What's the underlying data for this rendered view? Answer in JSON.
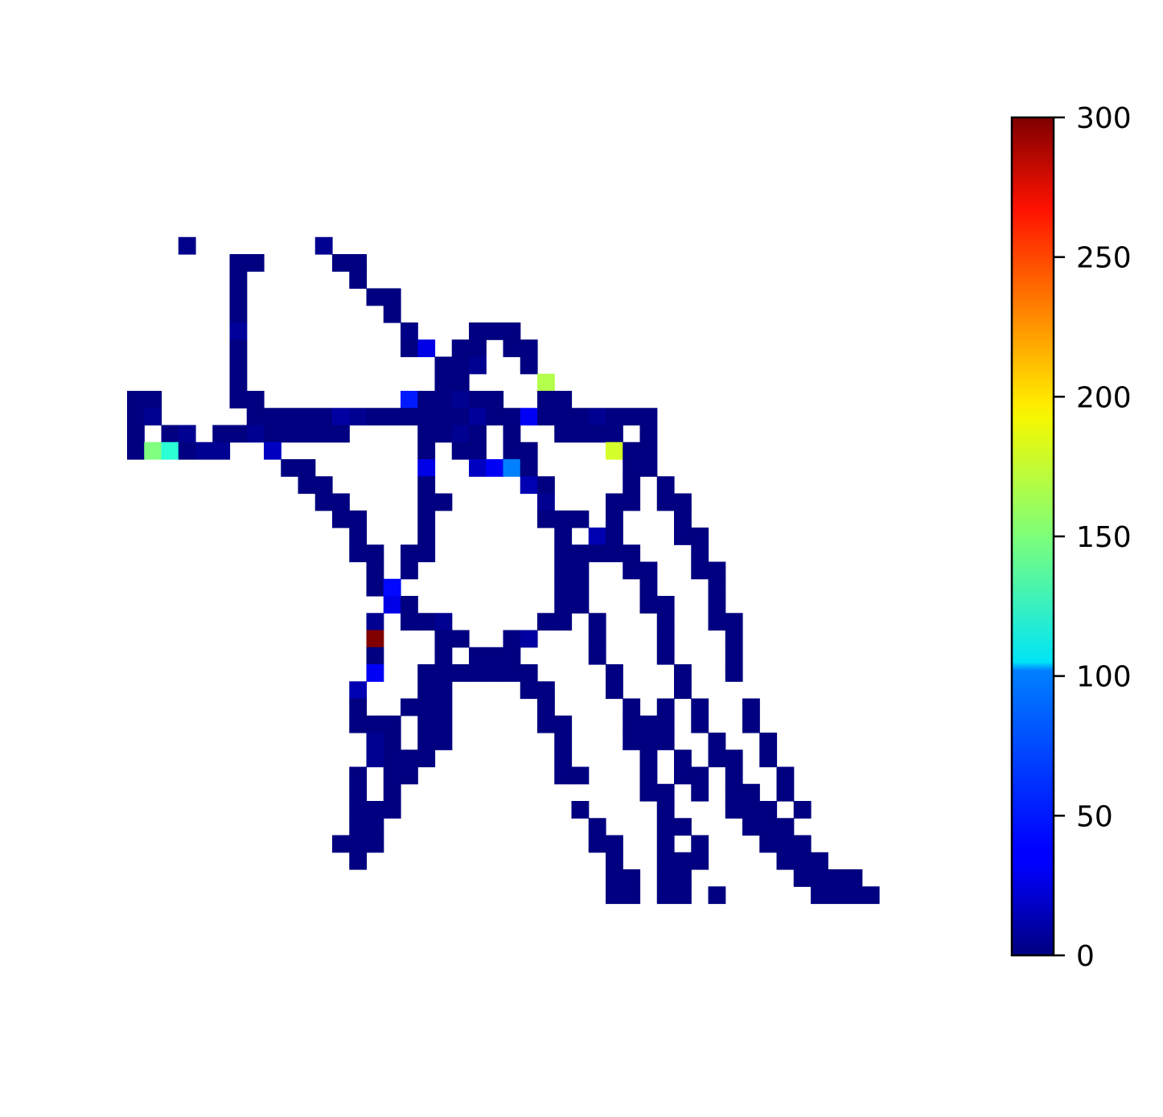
{
  "chart_data": {
    "type": "heatmap",
    "title": "",
    "xlabel": "",
    "ylabel": "",
    "grid": false,
    "colormap": "jet",
    "colorbar": {
      "range": [
        0,
        300
      ],
      "ticks": [
        0,
        50,
        100,
        150,
        200,
        250,
        300
      ],
      "tick_labels": [
        "0",
        "50",
        "100",
        "150",
        "200",
        "250",
        "300"
      ]
    },
    "grid_size": {
      "rows": 49,
      "cols": 49
    },
    "cells": [
      [
        7,
        3,
        3
      ],
      [
        7,
        11,
        5
      ],
      [
        8,
        6,
        0
      ],
      [
        8,
        7,
        0
      ],
      [
        8,
        12,
        0
      ],
      [
        8,
        13,
        0
      ],
      [
        9,
        6,
        0
      ],
      [
        9,
        13,
        0
      ],
      [
        10,
        6,
        0
      ],
      [
        10,
        14,
        0
      ],
      [
        10,
        15,
        0
      ],
      [
        11,
        6,
        0
      ],
      [
        11,
        15,
        0
      ],
      [
        12,
        6,
        8
      ],
      [
        12,
        16,
        2
      ],
      [
        12,
        20,
        0
      ],
      [
        12,
        21,
        0
      ],
      [
        12,
        22,
        0
      ],
      [
        13,
        6,
        0
      ],
      [
        13,
        16,
        0
      ],
      [
        13,
        17,
        30
      ],
      [
        13,
        19,
        0
      ],
      [
        13,
        20,
        0
      ],
      [
        13,
        22,
        0
      ],
      [
        13,
        23,
        0
      ],
      [
        14,
        6,
        0
      ],
      [
        14,
        18,
        0
      ],
      [
        14,
        19,
        0
      ],
      [
        14,
        20,
        5
      ],
      [
        14,
        23,
        0
      ],
      [
        15,
        6,
        0
      ],
      [
        15,
        18,
        0
      ],
      [
        15,
        19,
        0
      ],
      [
        15,
        24,
        165
      ],
      [
        16,
        0,
        0
      ],
      [
        16,
        1,
        0
      ],
      [
        16,
        6,
        0
      ],
      [
        16,
        7,
        0
      ],
      [
        16,
        16,
        45
      ],
      [
        16,
        17,
        0
      ],
      [
        16,
        18,
        0
      ],
      [
        16,
        19,
        5
      ],
      [
        16,
        20,
        0
      ],
      [
        16,
        21,
        0
      ],
      [
        16,
        24,
        0
      ],
      [
        16,
        25,
        0
      ],
      [
        17,
        0,
        0
      ],
      [
        17,
        1,
        5
      ],
      [
        17,
        7,
        0
      ],
      [
        17,
        8,
        0
      ],
      [
        17,
        9,
        0
      ],
      [
        17,
        10,
        0
      ],
      [
        17,
        11,
        0
      ],
      [
        17,
        12,
        10
      ],
      [
        17,
        13,
        5
      ],
      [
        17,
        14,
        0
      ],
      [
        17,
        15,
        0
      ],
      [
        17,
        16,
        0
      ],
      [
        17,
        17,
        0
      ],
      [
        17,
        18,
        0
      ],
      [
        17,
        19,
        0
      ],
      [
        17,
        20,
        8
      ],
      [
        17,
        21,
        0
      ],
      [
        17,
        22,
        0
      ],
      [
        17,
        23,
        35
      ],
      [
        17,
        24,
        0
      ],
      [
        17,
        25,
        0
      ],
      [
        17,
        26,
        0
      ],
      [
        17,
        27,
        5
      ],
      [
        17,
        28,
        0
      ],
      [
        17,
        29,
        0
      ],
      [
        17,
        30,
        0
      ],
      [
        18,
        0,
        0
      ],
      [
        18,
        2,
        0
      ],
      [
        18,
        3,
        5
      ],
      [
        18,
        5,
        0
      ],
      [
        18,
        6,
        0
      ],
      [
        18,
        7,
        5
      ],
      [
        18,
        8,
        0
      ],
      [
        18,
        9,
        0
      ],
      [
        18,
        10,
        0
      ],
      [
        18,
        11,
        0
      ],
      [
        18,
        12,
        0
      ],
      [
        18,
        17,
        0
      ],
      [
        18,
        18,
        0
      ],
      [
        18,
        19,
        5
      ],
      [
        18,
        20,
        0
      ],
      [
        18,
        22,
        0
      ],
      [
        18,
        25,
        0
      ],
      [
        18,
        26,
        0
      ],
      [
        18,
        27,
        0
      ],
      [
        18,
        28,
        0
      ],
      [
        18,
        30,
        0
      ],
      [
        19,
        0,
        0
      ],
      [
        19,
        1,
        150
      ],
      [
        19,
        2,
        125
      ],
      [
        19,
        3,
        0
      ],
      [
        19,
        4,
        5
      ],
      [
        19,
        5,
        5
      ],
      [
        19,
        8,
        20
      ],
      [
        19,
        17,
        0
      ],
      [
        19,
        19,
        0
      ],
      [
        19,
        20,
        0
      ],
      [
        19,
        22,
        0
      ],
      [
        19,
        23,
        0
      ],
      [
        19,
        28,
        175
      ],
      [
        19,
        29,
        0
      ],
      [
        19,
        30,
        0
      ],
      [
        20,
        9,
        0
      ],
      [
        20,
        10,
        0
      ],
      [
        20,
        17,
        30
      ],
      [
        20,
        20,
        20
      ],
      [
        20,
        21,
        35
      ],
      [
        20,
        22,
        75
      ],
      [
        20,
        23,
        0
      ],
      [
        20,
        29,
        0
      ],
      [
        20,
        30,
        0
      ],
      [
        21,
        10,
        0
      ],
      [
        21,
        11,
        0
      ],
      [
        21,
        17,
        0
      ],
      [
        21,
        23,
        15
      ],
      [
        21,
        24,
        0
      ],
      [
        21,
        29,
        0
      ],
      [
        21,
        31,
        0
      ],
      [
        22,
        11,
        0
      ],
      [
        22,
        12,
        0
      ],
      [
        22,
        17,
        0
      ],
      [
        22,
        18,
        0
      ],
      [
        22,
        24,
        5
      ],
      [
        22,
        28,
        0
      ],
      [
        22,
        29,
        0
      ],
      [
        22,
        31,
        0
      ],
      [
        22,
        32,
        0
      ],
      [
        23,
        12,
        0
      ],
      [
        23,
        13,
        0
      ],
      [
        23,
        17,
        0
      ],
      [
        23,
        24,
        0
      ],
      [
        23,
        25,
        0
      ],
      [
        23,
        26,
        0
      ],
      [
        23,
        28,
        0
      ],
      [
        23,
        32,
        0
      ],
      [
        24,
        13,
        0
      ],
      [
        24,
        17,
        0
      ],
      [
        24,
        25,
        0
      ],
      [
        24,
        27,
        15
      ],
      [
        24,
        28,
        0
      ],
      [
        24,
        32,
        0
      ],
      [
        24,
        33,
        0
      ],
      [
        25,
        13,
        0
      ],
      [
        25,
        14,
        0
      ],
      [
        25,
        16,
        0
      ],
      [
        25,
        17,
        0
      ],
      [
        25,
        25,
        0
      ],
      [
        25,
        26,
        0
      ],
      [
        25,
        27,
        0
      ],
      [
        25,
        28,
        0
      ],
      [
        25,
        29,
        0
      ],
      [
        25,
        33,
        0
      ],
      [
        26,
        14,
        0
      ],
      [
        26,
        16,
        0
      ],
      [
        26,
        25,
        0
      ],
      [
        26,
        26,
        0
      ],
      [
        26,
        29,
        0
      ],
      [
        26,
        30,
        0
      ],
      [
        26,
        33,
        0
      ],
      [
        26,
        34,
        0
      ],
      [
        27,
        14,
        0
      ],
      [
        27,
        15,
        40
      ],
      [
        27,
        25,
        0
      ],
      [
        27,
        26,
        0
      ],
      [
        27,
        30,
        0
      ],
      [
        27,
        34,
        0
      ],
      [
        28,
        15,
        30
      ],
      [
        28,
        16,
        0
      ],
      [
        28,
        25,
        0
      ],
      [
        28,
        26,
        0
      ],
      [
        28,
        30,
        0
      ],
      [
        28,
        31,
        0
      ],
      [
        28,
        34,
        0
      ],
      [
        29,
        14,
        5
      ],
      [
        29,
        16,
        0
      ],
      [
        29,
        17,
        0
      ],
      [
        29,
        18,
        5
      ],
      [
        29,
        24,
        0
      ],
      [
        29,
        25,
        0
      ],
      [
        29,
        27,
        0
      ],
      [
        29,
        31,
        0
      ],
      [
        29,
        34,
        0
      ],
      [
        29,
        35,
        0
      ],
      [
        30,
        14,
        300
      ],
      [
        30,
        18,
        0
      ],
      [
        30,
        19,
        0
      ],
      [
        30,
        22,
        0
      ],
      [
        30,
        23,
        10
      ],
      [
        30,
        27,
        0
      ],
      [
        30,
        31,
        0
      ],
      [
        30,
        35,
        0
      ],
      [
        31,
        14,
        0
      ],
      [
        31,
        18,
        0
      ],
      [
        31,
        20,
        0
      ],
      [
        31,
        21,
        0
      ],
      [
        31,
        22,
        0
      ],
      [
        31,
        27,
        0
      ],
      [
        31,
        31,
        0
      ],
      [
        31,
        35,
        0
      ],
      [
        32,
        14,
        35
      ],
      [
        32,
        17,
        0
      ],
      [
        32,
        18,
        0
      ],
      [
        32,
        19,
        0
      ],
      [
        32,
        20,
        0
      ],
      [
        32,
        21,
        0
      ],
      [
        32,
        22,
        0
      ],
      [
        32,
        23,
        0
      ],
      [
        32,
        28,
        0
      ],
      [
        32,
        32,
        0
      ],
      [
        32,
        35,
        0
      ],
      [
        33,
        13,
        15
      ],
      [
        33,
        17,
        0
      ],
      [
        33,
        18,
        0
      ],
      [
        33,
        23,
        0
      ],
      [
        33,
        24,
        0
      ],
      [
        33,
        28,
        0
      ],
      [
        33,
        32,
        0
      ],
      [
        34,
        13,
        0
      ],
      [
        34,
        16,
        0
      ],
      [
        34,
        17,
        0
      ],
      [
        34,
        18,
        0
      ],
      [
        34,
        24,
        0
      ],
      [
        34,
        29,
        0
      ],
      [
        34,
        31,
        0
      ],
      [
        34,
        33,
        0
      ],
      [
        34,
        36,
        0
      ],
      [
        35,
        13,
        0
      ],
      [
        35,
        14,
        0
      ],
      [
        35,
        15,
        0
      ],
      [
        35,
        17,
        0
      ],
      [
        35,
        18,
        0
      ],
      [
        35,
        24,
        0
      ],
      [
        35,
        25,
        0
      ],
      [
        35,
        29,
        0
      ],
      [
        35,
        30,
        0
      ],
      [
        35,
        31,
        0
      ],
      [
        35,
        33,
        0
      ],
      [
        35,
        36,
        0
      ],
      [
        36,
        14,
        5
      ],
      [
        36,
        15,
        0
      ],
      [
        36,
        17,
        0
      ],
      [
        36,
        18,
        0
      ],
      [
        36,
        25,
        0
      ],
      [
        36,
        29,
        0
      ],
      [
        36,
        30,
        0
      ],
      [
        36,
        31,
        0
      ],
      [
        36,
        34,
        0
      ],
      [
        36,
        37,
        0
      ],
      [
        37,
        14,
        5
      ],
      [
        37,
        15,
        0
      ],
      [
        37,
        16,
        0
      ],
      [
        37,
        17,
        0
      ],
      [
        37,
        25,
        0
      ],
      [
        37,
        30,
        0
      ],
      [
        37,
        32,
        0
      ],
      [
        37,
        34,
        0
      ],
      [
        37,
        35,
        0
      ],
      [
        37,
        37,
        0
      ],
      [
        38,
        13,
        0
      ],
      [
        38,
        15,
        0
      ],
      [
        38,
        16,
        0
      ],
      [
        38,
        25,
        0
      ],
      [
        38,
        26,
        0
      ],
      [
        38,
        30,
        0
      ],
      [
        38,
        32,
        0
      ],
      [
        38,
        33,
        0
      ],
      [
        38,
        35,
        0
      ],
      [
        38,
        38,
        0
      ],
      [
        39,
        13,
        0
      ],
      [
        39,
        15,
        0
      ],
      [
        39,
        30,
        0
      ],
      [
        39,
        31,
        0
      ],
      [
        39,
        33,
        0
      ],
      [
        39,
        35,
        0
      ],
      [
        39,
        36,
        0
      ],
      [
        39,
        38,
        0
      ],
      [
        40,
        13,
        0
      ],
      [
        40,
        14,
        0
      ],
      [
        40,
        15,
        0
      ],
      [
        40,
        26,
        0
      ],
      [
        40,
        31,
        0
      ],
      [
        40,
        35,
        0
      ],
      [
        40,
        36,
        0
      ],
      [
        40,
        37,
        0
      ],
      [
        40,
        39,
        0
      ],
      [
        41,
        13,
        0
      ],
      [
        41,
        14,
        0
      ],
      [
        41,
        27,
        0
      ],
      [
        41,
        31,
        0
      ],
      [
        41,
        32,
        0
      ],
      [
        41,
        36,
        0
      ],
      [
        41,
        37,
        0
      ],
      [
        41,
        38,
        0
      ],
      [
        42,
        12,
        0
      ],
      [
        42,
        13,
        0
      ],
      [
        42,
        14,
        0
      ],
      [
        42,
        27,
        0
      ],
      [
        42,
        28,
        0
      ],
      [
        42,
        31,
        0
      ],
      [
        42,
        33,
        0
      ],
      [
        42,
        37,
        0
      ],
      [
        42,
        38,
        0
      ],
      [
        42,
        39,
        0
      ],
      [
        43,
        13,
        0
      ],
      [
        43,
        28,
        0
      ],
      [
        43,
        31,
        0
      ],
      [
        43,
        32,
        0
      ],
      [
        43,
        33,
        0
      ],
      [
        43,
        38,
        0
      ],
      [
        43,
        39,
        0
      ],
      [
        43,
        40,
        0
      ],
      [
        44,
        28,
        0
      ],
      [
        44,
        29,
        0
      ],
      [
        44,
        31,
        0
      ],
      [
        44,
        32,
        0
      ],
      [
        44,
        39,
        0
      ],
      [
        44,
        40,
        0
      ],
      [
        44,
        41,
        0
      ],
      [
        44,
        42,
        0
      ],
      [
        45,
        28,
        0
      ],
      [
        45,
        29,
        0
      ],
      [
        45,
        31,
        0
      ],
      [
        45,
        32,
        0
      ],
      [
        45,
        34,
        0
      ],
      [
        45,
        40,
        0
      ],
      [
        45,
        41,
        0
      ],
      [
        45,
        42,
        0
      ],
      [
        45,
        43,
        0
      ]
    ]
  }
}
